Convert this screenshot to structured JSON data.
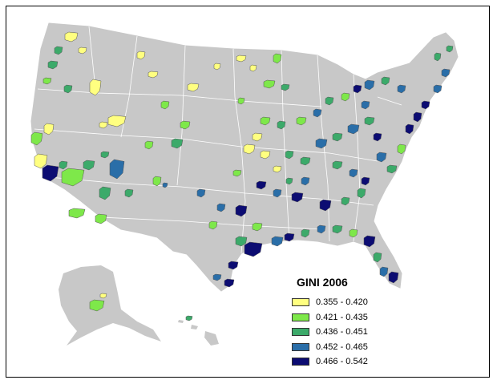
{
  "legend": {
    "title": "GINI 2006",
    "classes": [
      {
        "label": "0.355 - 0.420",
        "color": "#ffff80"
      },
      {
        "label": "0.421 - 0.435",
        "color": "#7ee84a"
      },
      {
        "label": "0.436 - 0.451",
        "color": "#3caa6a"
      },
      {
        "label": "0.452 - 0.465",
        "color": "#2a6ea8"
      },
      {
        "label": "0.466 - 0.542",
        "color": "#0c0c72"
      }
    ]
  },
  "colors": {
    "land": "#c8c8c8",
    "state_border": "#ffffff",
    "background": "#ffffff"
  }
}
